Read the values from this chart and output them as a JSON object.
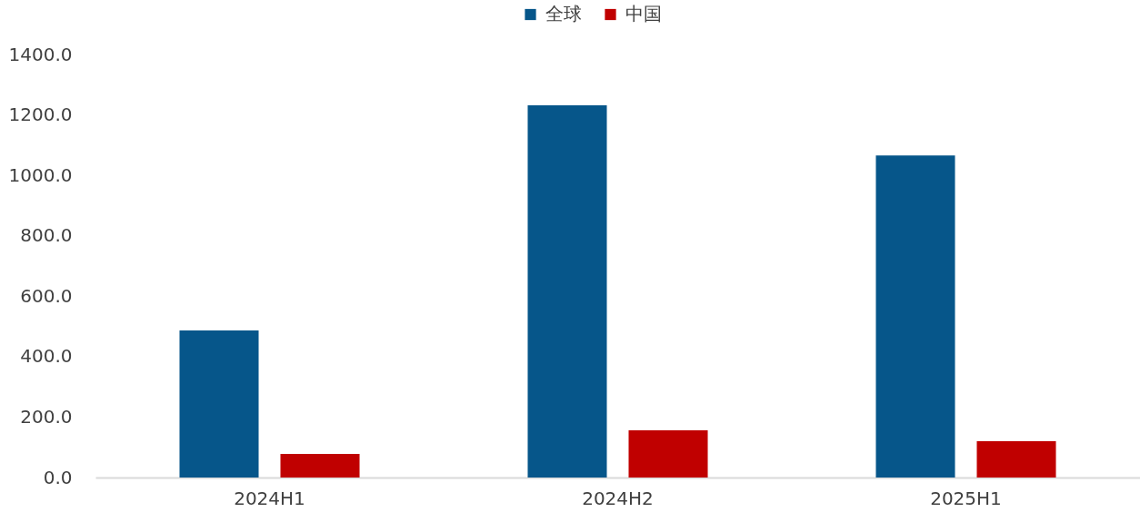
{
  "chart_data": {
    "type": "bar",
    "categories": [
      "2024H1",
      "2024H2",
      "2025H1"
    ],
    "series": [
      {
        "name": "全球",
        "color": "#06568a",
        "values": [
          487,
          1232,
          1066
        ]
      },
      {
        "name": "中国",
        "color": "#c00000",
        "values": [
          78,
          156,
          120
        ]
      }
    ],
    "ylim": [
      0,
      1400
    ],
    "yticks": [
      {
        "value": 0,
        "label": "0.0"
      },
      {
        "value": 200,
        "label": "200.0"
      },
      {
        "value": 400,
        "label": "400.0"
      },
      {
        "value": 600,
        "label": "600.0"
      },
      {
        "value": 800,
        "label": "800.0"
      },
      {
        "value": 1000,
        "label": "1000.0"
      },
      {
        "value": 1200,
        "label": "1200.0"
      },
      {
        "value": 1400,
        "label": "1400.0"
      }
    ],
    "legend": "top"
  }
}
